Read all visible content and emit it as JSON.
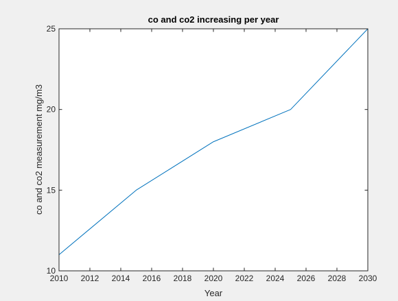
{
  "chart_data": {
    "type": "line",
    "title": "co and co2 increasing per year",
    "xlabel": "Year",
    "ylabel": "co and co2 measurement mg/m3",
    "xlim": [
      2010,
      2030
    ],
    "ylim": [
      10,
      25
    ],
    "xticks": [
      2010,
      2012,
      2014,
      2016,
      2018,
      2020,
      2022,
      2024,
      2026,
      2028,
      2030
    ],
    "yticks": [
      10,
      15,
      20,
      25
    ],
    "grid": false,
    "series": [
      {
        "x": [
          2010,
          2015,
          2020,
          2025,
          2030
        ],
        "y": [
          11,
          15,
          18,
          20,
          25
        ],
        "color": "#0072bd"
      }
    ]
  },
  "colors": {
    "figure_background": "#f0f0f0",
    "axes_background": "#ffffff",
    "axes_color": "#262626"
  }
}
